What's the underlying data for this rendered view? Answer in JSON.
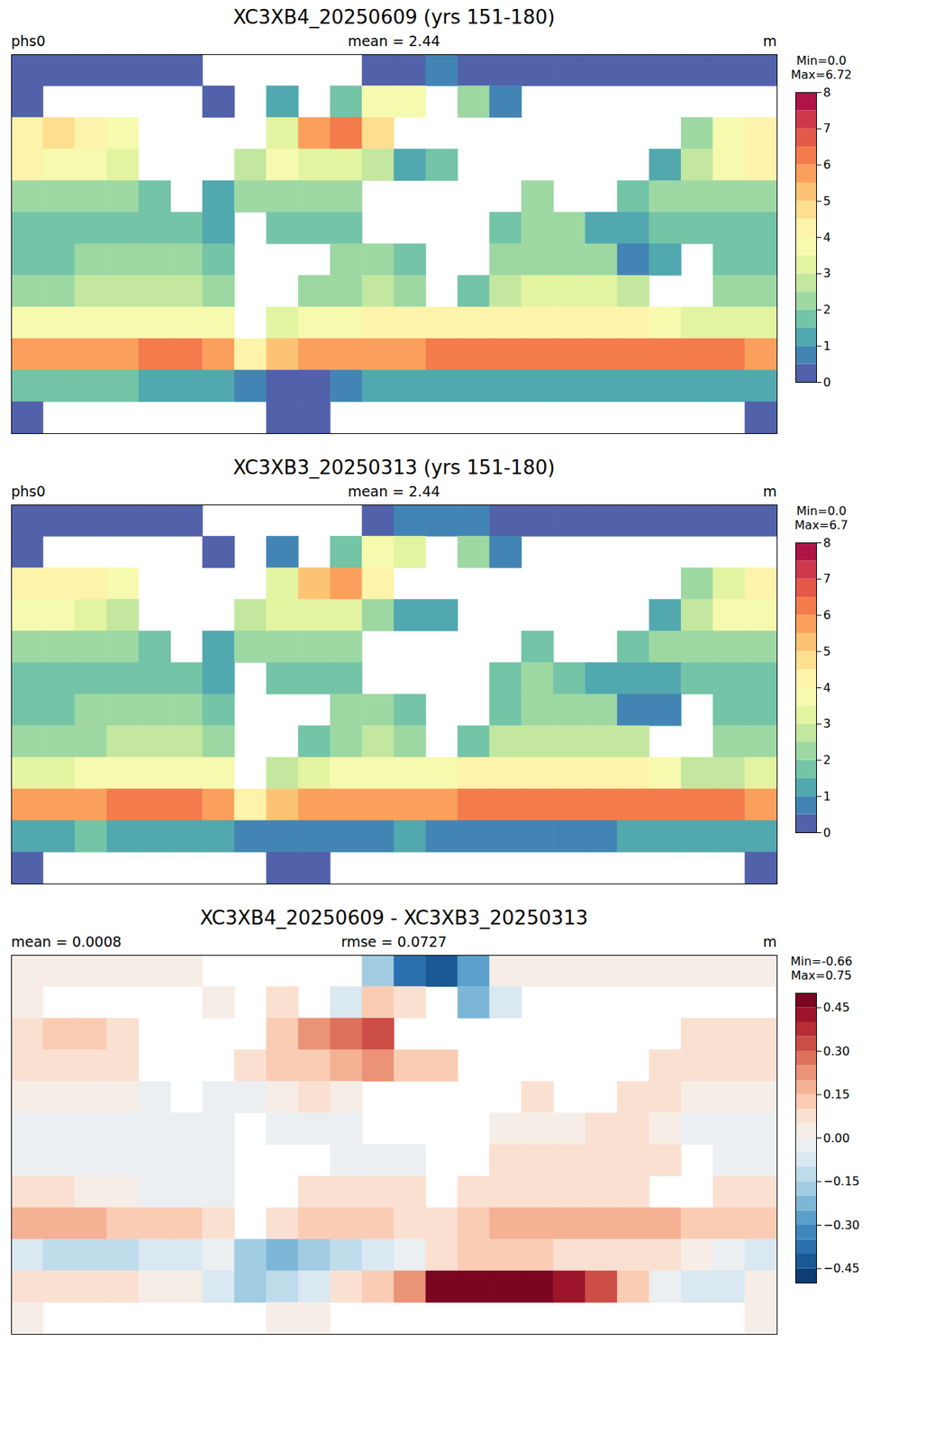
{
  "chart_data": [
    {
      "type": "heatmap",
      "title": "XC3XB4_20250609 (yrs 151-180)",
      "header": [
        "phs0",
        "mean = 2.44",
        "m"
      ],
      "color": "Spectral_r",
      "xlim": [
        -180,
        180
      ],
      "ylim": [
        -90,
        90
      ],
      "tick_labels": false,
      "colorbar_label": [
        "Min=0.0",
        "Max=6.72"
      ],
      "colorbar_lim": [
        0,
        8
      ],
      "colorbar_ticks": [
        0,
        1,
        2,
        3,
        4,
        5,
        6,
        7,
        8
      ],
      "colorbar_levels": [
        0,
        0.5,
        1,
        1.5,
        2,
        2.5,
        3,
        3.5,
        4,
        4.5,
        5,
        5.5,
        6,
        6.5,
        7,
        7.5,
        8
      ],
      "lon": [
        -172.5,
        -157.5,
        -142.5,
        -127.5,
        -112.5,
        -97.5,
        -82.5,
        -67.5,
        -52.5,
        -37.5,
        -22.5,
        -7.5,
        7.5,
        22.5,
        37.5,
        52.5,
        67.5,
        82.5,
        97.5,
        112.5,
        127.5,
        142.5,
        157.5,
        172.5
      ],
      "lat": [
        82.5,
        67.5,
        52.5,
        37.5,
        22.5,
        7.5,
        -7.5,
        -22.5,
        -37.5,
        -52.5,
        -67.5,
        -82.5
      ],
      "cells": [
        [
          0.05,
          0.05,
          0.05,
          0.05,
          0.05,
          0.05,
          null,
          null,
          null,
          null,
          null,
          0.2,
          0.3,
          0.5,
          0.3,
          0.05,
          0.05,
          0.05,
          0.05,
          0.05,
          0.05,
          0.05,
          0.05,
          0.05
        ],
        [
          0.3,
          null,
          null,
          null,
          null,
          null,
          0.3,
          null,
          1.0,
          null,
          1.8,
          3.8,
          3.5,
          null,
          2.0,
          0.6,
          null,
          null,
          null,
          null,
          null,
          null,
          null,
          null
        ],
        [
          4.2,
          4.5,
          4.2,
          3.6,
          null,
          null,
          null,
          null,
          3.2,
          5.6,
          6.2,
          4.6,
          null,
          null,
          null,
          null,
          null,
          null,
          null,
          null,
          null,
          2.2,
          3.5,
          4.4
        ],
        [
          4.0,
          3.8,
          3.5,
          3.0,
          null,
          null,
          null,
          2.8,
          3.5,
          3.4,
          3.2,
          2.6,
          1.4,
          1.5,
          null,
          null,
          null,
          null,
          null,
          null,
          1.4,
          2.9,
          3.6,
          4.0
        ],
        [
          2.4,
          2.3,
          2.4,
          2.3,
          1.6,
          null,
          1.3,
          2.0,
          2.4,
          2.4,
          2.3,
          null,
          null,
          null,
          null,
          null,
          2.0,
          null,
          null,
          1.6,
          2.1,
          2.3,
          2.4,
          2.4
        ],
        [
          1.9,
          1.9,
          1.9,
          1.8,
          1.6,
          1.5,
          1.2,
          null,
          1.8,
          1.8,
          1.5,
          null,
          null,
          null,
          null,
          1.9,
          2.2,
          2.0,
          1.2,
          1.2,
          1.5,
          1.8,
          1.8,
          1.9
        ],
        [
          1.8,
          1.9,
          2.0,
          2.1,
          2.1,
          2.0,
          1.6,
          null,
          null,
          null,
          2.0,
          2.0,
          1.5,
          null,
          null,
          2.0,
          2.3,
          2.3,
          2.2,
          0.8,
          1.0,
          null,
          1.6,
          1.7
        ],
        [
          2.4,
          2.4,
          2.5,
          2.6,
          2.6,
          2.5,
          2.3,
          null,
          null,
          2.0,
          2.4,
          2.6,
          2.3,
          null,
          1.8,
          2.8,
          3.0,
          3.0,
          3.0,
          2.7,
          null,
          null,
          2.2,
          2.4
        ],
        [
          3.5,
          3.6,
          3.8,
          3.8,
          3.8,
          3.8,
          3.6,
          null,
          3.0,
          3.5,
          3.8,
          4.0,
          4.0,
          4.0,
          4.3,
          4.2,
          4.2,
          4.2,
          4.3,
          4.2,
          3.8,
          3.0,
          3.0,
          3.2
        ],
        [
          5.5,
          5.6,
          5.8,
          5.9,
          6.0,
          6.0,
          5.8,
          4.0,
          5.0,
          5.5,
          5.6,
          5.7,
          5.8,
          6.0,
          6.1,
          6.2,
          6.3,
          6.3,
          6.3,
          6.4,
          6.3,
          6.2,
          6.0,
          5.8
        ],
        [
          1.5,
          1.5,
          1.6,
          1.5,
          1.4,
          1.3,
          1.0,
          0.6,
          0.4,
          0.4,
          0.6,
          1.0,
          1.2,
          1.3,
          1.3,
          1.1,
          1.0,
          1.0,
          1.2,
          1.2,
          1.2,
          1.2,
          1.3,
          1.4
        ],
        [
          0.05,
          null,
          null,
          null,
          null,
          null,
          null,
          null,
          0.05,
          0.05,
          null,
          null,
          null,
          null,
          null,
          null,
          null,
          null,
          null,
          null,
          null,
          null,
          null,
          0.05
        ]
      ]
    },
    {
      "type": "heatmap",
      "title": "XC3XB3_20250313 (yrs 151-180)",
      "header": [
        "phs0",
        "mean = 2.44",
        "m"
      ],
      "color": "Spectral_r",
      "xlim": [
        -180,
        180
      ],
      "ylim": [
        -90,
        90
      ],
      "tick_labels": false,
      "colorbar_label": [
        "Min=0.0",
        "Max=6.7"
      ],
      "colorbar_lim": [
        0,
        8
      ],
      "colorbar_ticks": [
        0,
        1,
        2,
        3,
        4,
        5,
        6,
        7,
        8
      ],
      "colorbar_levels": [
        0,
        0.5,
        1,
        1.5,
        2,
        2.5,
        3,
        3.5,
        4,
        4.5,
        5,
        5.5,
        6,
        6.5,
        7,
        7.5,
        8
      ],
      "lon": [
        -172.5,
        -157.5,
        -142.5,
        -127.5,
        -112.5,
        -97.5,
        -82.5,
        -67.5,
        -52.5,
        -37.5,
        -22.5,
        -7.5,
        7.5,
        22.5,
        37.5,
        52.5,
        67.5,
        82.5,
        97.5,
        112.5,
        127.5,
        142.5,
        157.5,
        172.5
      ],
      "lat": [
        82.5,
        67.5,
        52.5,
        37.5,
        22.5,
        7.5,
        -7.5,
        -22.5,
        -37.5,
        -52.5,
        -67.5,
        -82.5
      ],
      "cells": [
        [
          0.02,
          0.02,
          0.02,
          0.02,
          0.02,
          0.02,
          null,
          null,
          null,
          null,
          null,
          0.4,
          0.7,
          0.95,
          0.6,
          0.02,
          0.02,
          0.02,
          0.02,
          0.02,
          0.02,
          0.02,
          0.02,
          0.02
        ],
        [
          0.27,
          null,
          null,
          null,
          null,
          null,
          0.27,
          null,
          0.95,
          null,
          1.9,
          3.7,
          3.45,
          null,
          2.25,
          0.7,
          null,
          null,
          null,
          null,
          null,
          null,
          null,
          null
        ],
        [
          4.12,
          4.4,
          4.1,
          3.52,
          null,
          null,
          null,
          null,
          3.1,
          5.4,
          5.95,
          4.3,
          null,
          null,
          null,
          null,
          null,
          null,
          null,
          null,
          null,
          2.15,
          3.45,
          4.35
        ],
        [
          3.95,
          3.75,
          3.45,
          2.95,
          null,
          null,
          null,
          2.75,
          3.4,
          3.3,
          3.05,
          2.4,
          1.3,
          1.4,
          null,
          null,
          null,
          null,
          null,
          null,
          1.35,
          2.85,
          3.52,
          3.95
        ],
        [
          2.37,
          2.28,
          2.38,
          2.27,
          1.63,
          null,
          1.35,
          2.05,
          2.37,
          2.35,
          2.27,
          null,
          null,
          null,
          null,
          null,
          1.95,
          null,
          null,
          1.55,
          2.05,
          2.27,
          2.37,
          2.37
        ],
        [
          1.93,
          1.93,
          1.95,
          1.85,
          1.65,
          1.53,
          1.23,
          null,
          1.85,
          1.85,
          1.53,
          null,
          null,
          null,
          null,
          1.87,
          2.17,
          1.97,
          1.15,
          1.15,
          1.47,
          1.83,
          1.83,
          1.93
        ],
        [
          1.83,
          1.93,
          2.03,
          2.13,
          2.13,
          2.03,
          1.63,
          null,
          null,
          null,
          2.05,
          2.03,
          1.53,
          null,
          null,
          1.95,
          2.25,
          2.25,
          2.15,
          0.75,
          0.95,
          null,
          1.63,
          1.73
        ],
        [
          2.35,
          2.35,
          2.47,
          2.57,
          2.63,
          2.53,
          2.33,
          null,
          null,
          1.95,
          2.35,
          2.55,
          2.25,
          null,
          1.75,
          2.75,
          2.95,
          2.95,
          2.95,
          2.62,
          null,
          null,
          2.15,
          2.35
        ],
        [
          3.35,
          3.45,
          3.65,
          3.7,
          3.7,
          3.7,
          3.55,
          null,
          2.95,
          3.4,
          3.7,
          3.9,
          3.95,
          3.95,
          4.2,
          4.05,
          4.05,
          4.05,
          4.15,
          4.05,
          3.65,
          2.9,
          2.9,
          3.1
        ],
        [
          5.6,
          5.75,
          5.95,
          6.05,
          6.1,
          6.1,
          5.85,
          4.2,
          5.25,
          5.7,
          5.75,
          5.8,
          5.85,
          5.95,
          6.0,
          6.1,
          6.2,
          6.25,
          6.25,
          6.35,
          6.25,
          6.2,
          6.05,
          5.9
        ],
        [
          1.45,
          1.45,
          1.55,
          1.45,
          1.37,
          1.3,
          1.1,
          0.8,
          0.55,
          0.5,
          0.55,
          0.9,
          1.0,
          0.85,
          0.75,
          0.55,
          0.5,
          0.6,
          0.9,
          1.1,
          1.25,
          1.3,
          1.4,
          1.4
        ],
        [
          0.02,
          null,
          null,
          null,
          null,
          null,
          null,
          null,
          0.02,
          0.02,
          null,
          null,
          null,
          null,
          null,
          null,
          null,
          null,
          null,
          null,
          null,
          null,
          null,
          0.02
        ]
      ]
    },
    {
      "type": "heatmap",
      "title": "XC3XB4_20250609 - XC3XB3_20250313",
      "header": [
        "mean = 0.0008",
        "rmse = 0.0727",
        "m"
      ],
      "color": "RdBu_r",
      "xlim": [
        -180,
        180
      ],
      "ylim": [
        -90,
        90
      ],
      "tick_labels": false,
      "colorbar_label": [
        "Min=-0.66",
        "Max=0.75"
      ],
      "colorbar_lim": [
        -0.5,
        0.5
      ],
      "colorbar_ticks": [
        {
          "value": -0.45,
          "label": "−0.45"
        },
        {
          "value": -0.3,
          "label": "−0.30"
        },
        {
          "value": -0.15,
          "label": "−0.15"
        },
        {
          "value": 0,
          "label": "0.00"
        },
        {
          "value": 0.15,
          "label": "0.15"
        },
        {
          "value": 0.3,
          "label": "0.30"
        },
        {
          "value": 0.45,
          "label": "0.45"
        }
      ],
      "colorbar_levels": [
        -0.5,
        -0.45,
        -0.4,
        -0.35,
        -0.3,
        -0.25,
        -0.2,
        -0.15,
        -0.1,
        -0.05,
        0,
        0.05,
        0.1,
        0.15,
        0.2,
        0.25,
        0.3,
        0.35,
        0.4,
        0.45,
        0.5
      ],
      "lon": [
        -172.5,
        -157.5,
        -142.5,
        -127.5,
        -112.5,
        -97.5,
        -82.5,
        -67.5,
        -52.5,
        -37.5,
        -22.5,
        -7.5,
        7.5,
        22.5,
        37.5,
        52.5,
        67.5,
        82.5,
        97.5,
        112.5,
        127.5,
        142.5,
        157.5,
        172.5
      ],
      "lat": [
        82.5,
        67.5,
        52.5,
        37.5,
        22.5,
        7.5,
        -7.5,
        -22.5,
        -37.5,
        -52.5,
        -67.5,
        -82.5
      ],
      "cells": [
        [
          0.03,
          0.03,
          0.03,
          0.03,
          0.03,
          0.03,
          null,
          null,
          null,
          null,
          null,
          -0.2,
          -0.4,
          -0.45,
          -0.3,
          0.03,
          0.03,
          0.03,
          0.03,
          0.03,
          0.03,
          0.03,
          0.03,
          0.03
        ],
        [
          0.03,
          null,
          null,
          null,
          null,
          null,
          0.03,
          null,
          0.05,
          null,
          -0.1,
          0.1,
          0.05,
          null,
          -0.25,
          -0.1,
          null,
          null,
          null,
          null,
          null,
          null,
          null,
          null
        ],
        [
          0.08,
          0.1,
          0.1,
          0.08,
          null,
          null,
          null,
          null,
          0.1,
          0.2,
          0.25,
          0.3,
          null,
          null,
          null,
          null,
          null,
          null,
          null,
          null,
          null,
          0.05,
          0.05,
          0.05
        ],
        [
          0.05,
          0.05,
          0.05,
          0.05,
          null,
          null,
          null,
          0.05,
          0.1,
          0.1,
          0.15,
          0.2,
          0.1,
          0.1,
          null,
          null,
          null,
          null,
          null,
          null,
          0.05,
          0.05,
          0.08,
          0.05
        ],
        [
          0.03,
          0.02,
          0.02,
          0.03,
          -0.03,
          null,
          -0.05,
          -0.05,
          0.03,
          0.05,
          0.03,
          null,
          null,
          null,
          null,
          null,
          0.05,
          null,
          null,
          0.05,
          0.05,
          0.03,
          0.03,
          0.03
        ],
        [
          -0.03,
          -0.03,
          -0.05,
          -0.05,
          -0.05,
          -0.03,
          -0.03,
          null,
          -0.05,
          -0.05,
          -0.03,
          null,
          null,
          null,
          null,
          0.03,
          0.03,
          0.03,
          0.05,
          0.05,
          0.03,
          -0.03,
          -0.03,
          -0.03
        ],
        [
          -0.03,
          -0.03,
          -0.03,
          -0.03,
          -0.03,
          -0.03,
          -0.03,
          null,
          null,
          null,
          -0.05,
          -0.03,
          -0.03,
          null,
          null,
          0.05,
          0.05,
          0.05,
          0.05,
          0.05,
          0.05,
          null,
          -0.03,
          -0.03
        ],
        [
          0.05,
          0.05,
          0.03,
          0.03,
          -0.03,
          -0.03,
          -0.03,
          null,
          null,
          0.05,
          0.05,
          0.05,
          0.05,
          null,
          0.05,
          0.05,
          0.05,
          0.05,
          0.05,
          0.08,
          null,
          null,
          0.05,
          0.05
        ],
        [
          0.15,
          0.15,
          0.15,
          0.1,
          0.1,
          0.1,
          0.05,
          null,
          0.05,
          0.1,
          0.1,
          0.1,
          0.05,
          0.05,
          0.1,
          0.15,
          0.15,
          0.15,
          0.15,
          0.15,
          0.15,
          0.1,
          0.1,
          0.1
        ],
        [
          -0.1,
          -0.15,
          -0.15,
          -0.15,
          -0.1,
          -0.1,
          -0.05,
          -0.2,
          -0.25,
          -0.2,
          -0.15,
          -0.1,
          -0.05,
          0.05,
          0.1,
          0.1,
          0.1,
          0.05,
          0.05,
          0.05,
          0.05,
          0,
          -0.05,
          -0.1
        ],
        [
          0.05,
          0.05,
          0.05,
          0.05,
          0.03,
          0,
          -0.1,
          -0.2,
          -0.15,
          -0.1,
          0.05,
          0.1,
          0.2,
          0.45,
          0.55,
          0.55,
          0.5,
          0.4,
          0.3,
          0.1,
          -0.05,
          -0.1,
          -0.1,
          0
        ],
        [
          0.03,
          null,
          null,
          null,
          null,
          null,
          null,
          null,
          0.03,
          0.03,
          null,
          null,
          null,
          null,
          null,
          null,
          null,
          null,
          null,
          null,
          null,
          null,
          null,
          0.03
        ]
      ]
    }
  ]
}
